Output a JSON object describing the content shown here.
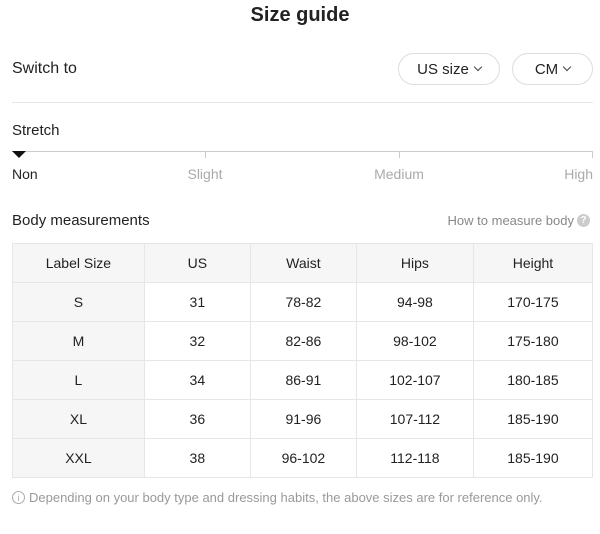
{
  "title": "Size guide",
  "switch": {
    "label": "Switch to",
    "size_system": "US size",
    "unit": "CM"
  },
  "stretch": {
    "label": "Stretch",
    "levels": [
      "Non",
      "Slight",
      "Medium",
      "High"
    ],
    "selected": "Non"
  },
  "measurements": {
    "title": "Body measurements",
    "how_to": "How to measure body",
    "columns": [
      "Label Size",
      "US",
      "Waist",
      "Hips",
      "Height"
    ],
    "rows": [
      [
        "S",
        "31",
        "78-82",
        "94-98",
        "170-175"
      ],
      [
        "M",
        "32",
        "82-86",
        "98-102",
        "175-180"
      ],
      [
        "L",
        "34",
        "86-91",
        "102-107",
        "180-185"
      ],
      [
        "XL",
        "36",
        "91-96",
        "107-112",
        "185-190"
      ],
      [
        "XXL",
        "38",
        "96-102",
        "112-118",
        "185-190"
      ]
    ]
  },
  "note": "Depending on your body type and dressing habits, the above sizes are for reference only."
}
